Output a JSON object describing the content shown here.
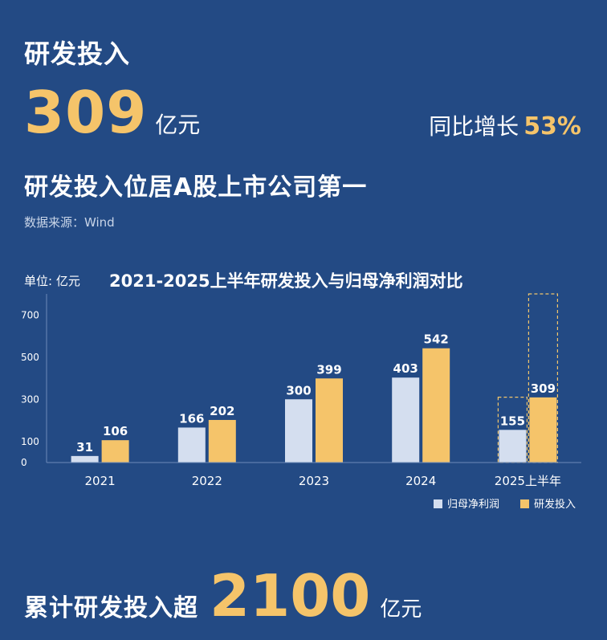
{
  "header": {
    "title": "研发投入",
    "amount": "309",
    "amount_unit": "亿元",
    "yoy_label": "同比增长",
    "yoy_value": "53%",
    "headline": "研发投入位居A股上市公司第一",
    "source": "数据来源：Wind"
  },
  "footer": {
    "prefix": "累计研发投入超",
    "amount": "2100",
    "unit": "亿元"
  },
  "colors": {
    "background": "#234a84",
    "profit": "#d4deef",
    "rnd": "#f5c46a",
    "dashed": "#f2c56b"
  },
  "chart_data": {
    "type": "bar",
    "title": "2021-2025上半年研发投入与归母净利润对比",
    "unit_label": "单位: 亿元",
    "categories": [
      "2021",
      "2022",
      "2023",
      "2024",
      "2025上半年"
    ],
    "series": [
      {
        "name": "归母净利润",
        "values": [
          31,
          166,
          300,
          403,
          155
        ]
      },
      {
        "name": "研发投入",
        "values": [
          106,
          202,
          399,
          542,
          309
        ]
      }
    ],
    "ylim": [
      0,
      800
    ],
    "yticks": [
      0,
      100,
      300,
      500,
      700
    ],
    "legend": "bottom-right",
    "grid": false,
    "dashed_outlines": [
      310,
      800
    ]
  }
}
